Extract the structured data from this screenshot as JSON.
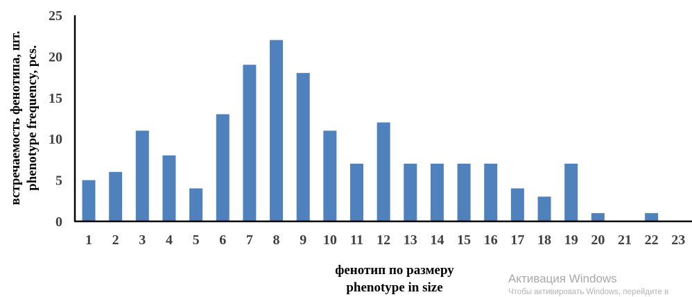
{
  "chart_data": {
    "type": "bar",
    "categories": [
      "1",
      "2",
      "3",
      "4",
      "5",
      "6",
      "7",
      "8",
      "9",
      "10",
      "11",
      "12",
      "13",
      "14",
      "15",
      "16",
      "17",
      "18",
      "19",
      "20",
      "21",
      "22",
      "23"
    ],
    "values": [
      5,
      6,
      11,
      8,
      4,
      13,
      19,
      22,
      18,
      11,
      7,
      12,
      7,
      7,
      7,
      7,
      4,
      3,
      7,
      1,
      0,
      1,
      0
    ],
    "xlabel": [
      "фенотип  по размеру",
      "phenotype  in size"
    ],
    "ylabel": [
      "встречаемость фенотипа,  шт.",
      "phenotype frequency, pcs."
    ],
    "ylim": [
      0,
      25
    ],
    "yticks": [
      0,
      5,
      10,
      15,
      20,
      25
    ],
    "grid": false,
    "colors": {
      "bar": "#4f81bd",
      "axis": "#000000",
      "tick_text": "#404040"
    }
  },
  "watermark": {
    "title": "Активация Windows",
    "subtitle": "Чтобы активировать Windows, перейдите в"
  }
}
